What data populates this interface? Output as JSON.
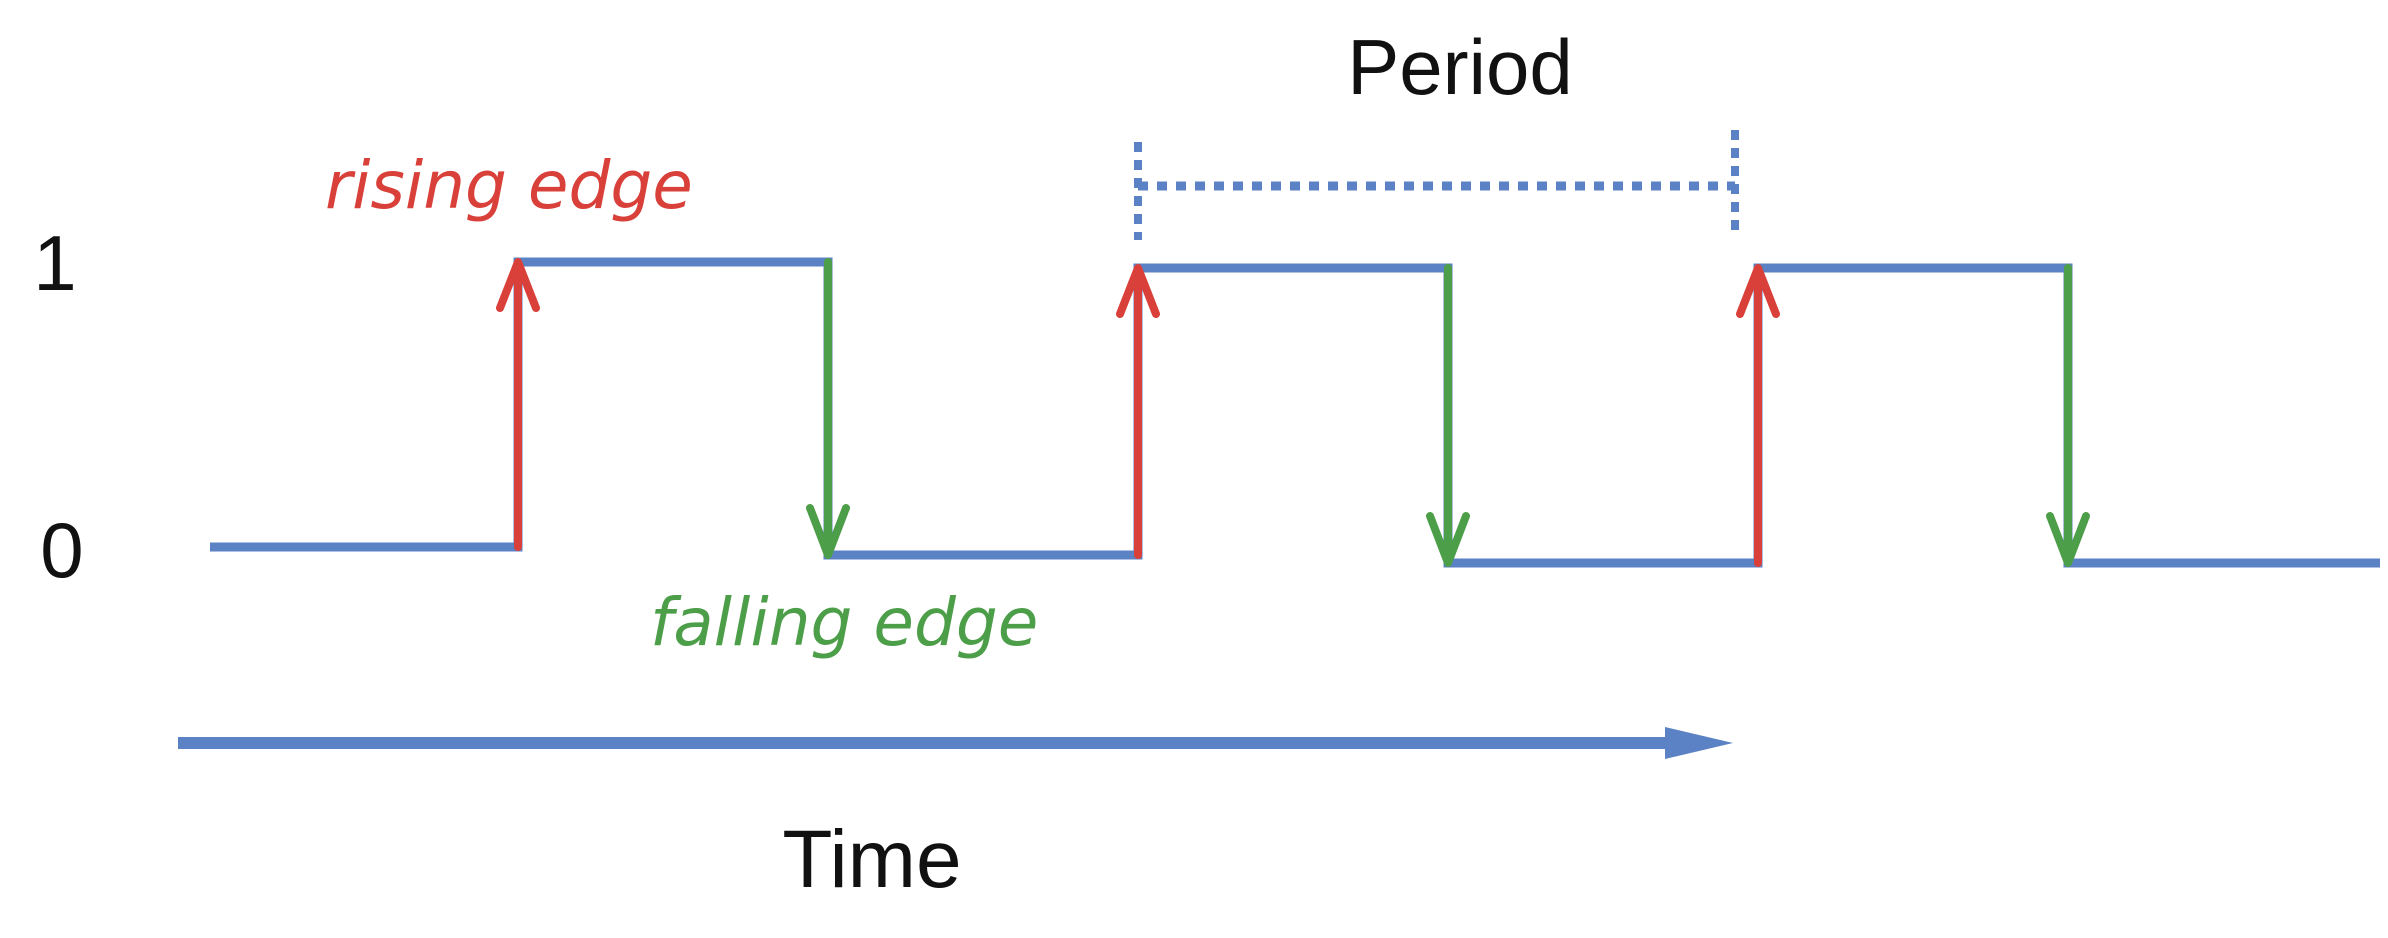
{
  "labels": {
    "level_high": "1",
    "level_low": "0",
    "rising_edge": "rising edge",
    "falling_edge": "falling edge",
    "period": "Period",
    "time": "Time"
  },
  "colors": {
    "signal": "#5b82c4",
    "rising": "#d9403a",
    "falling": "#4c9e48",
    "text": "#111111"
  }
}
